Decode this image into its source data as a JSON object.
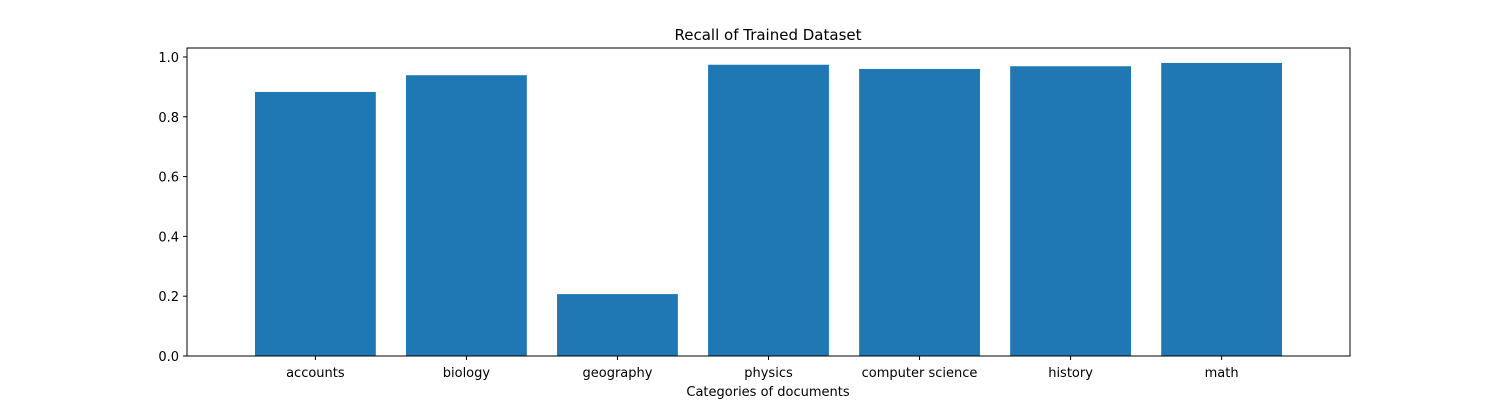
{
  "chart_data": {
    "type": "bar",
    "title": "Recall of Trained Dataset",
    "xlabel": "Categories of documents",
    "ylabel": "",
    "categories": [
      "accounts",
      "biology",
      "geography",
      "physics",
      "computer science",
      "history",
      "math"
    ],
    "values": [
      0.883,
      0.939,
      0.207,
      0.974,
      0.96,
      0.969,
      0.98
    ],
    "ylim": [
      0.0,
      1.03
    ],
    "yticks": [
      "0.0",
      "0.2",
      "0.4",
      "0.6",
      "0.8",
      "1.0"
    ],
    "bar_color": "#1f77b4",
    "grid": false,
    "legend": "none"
  }
}
